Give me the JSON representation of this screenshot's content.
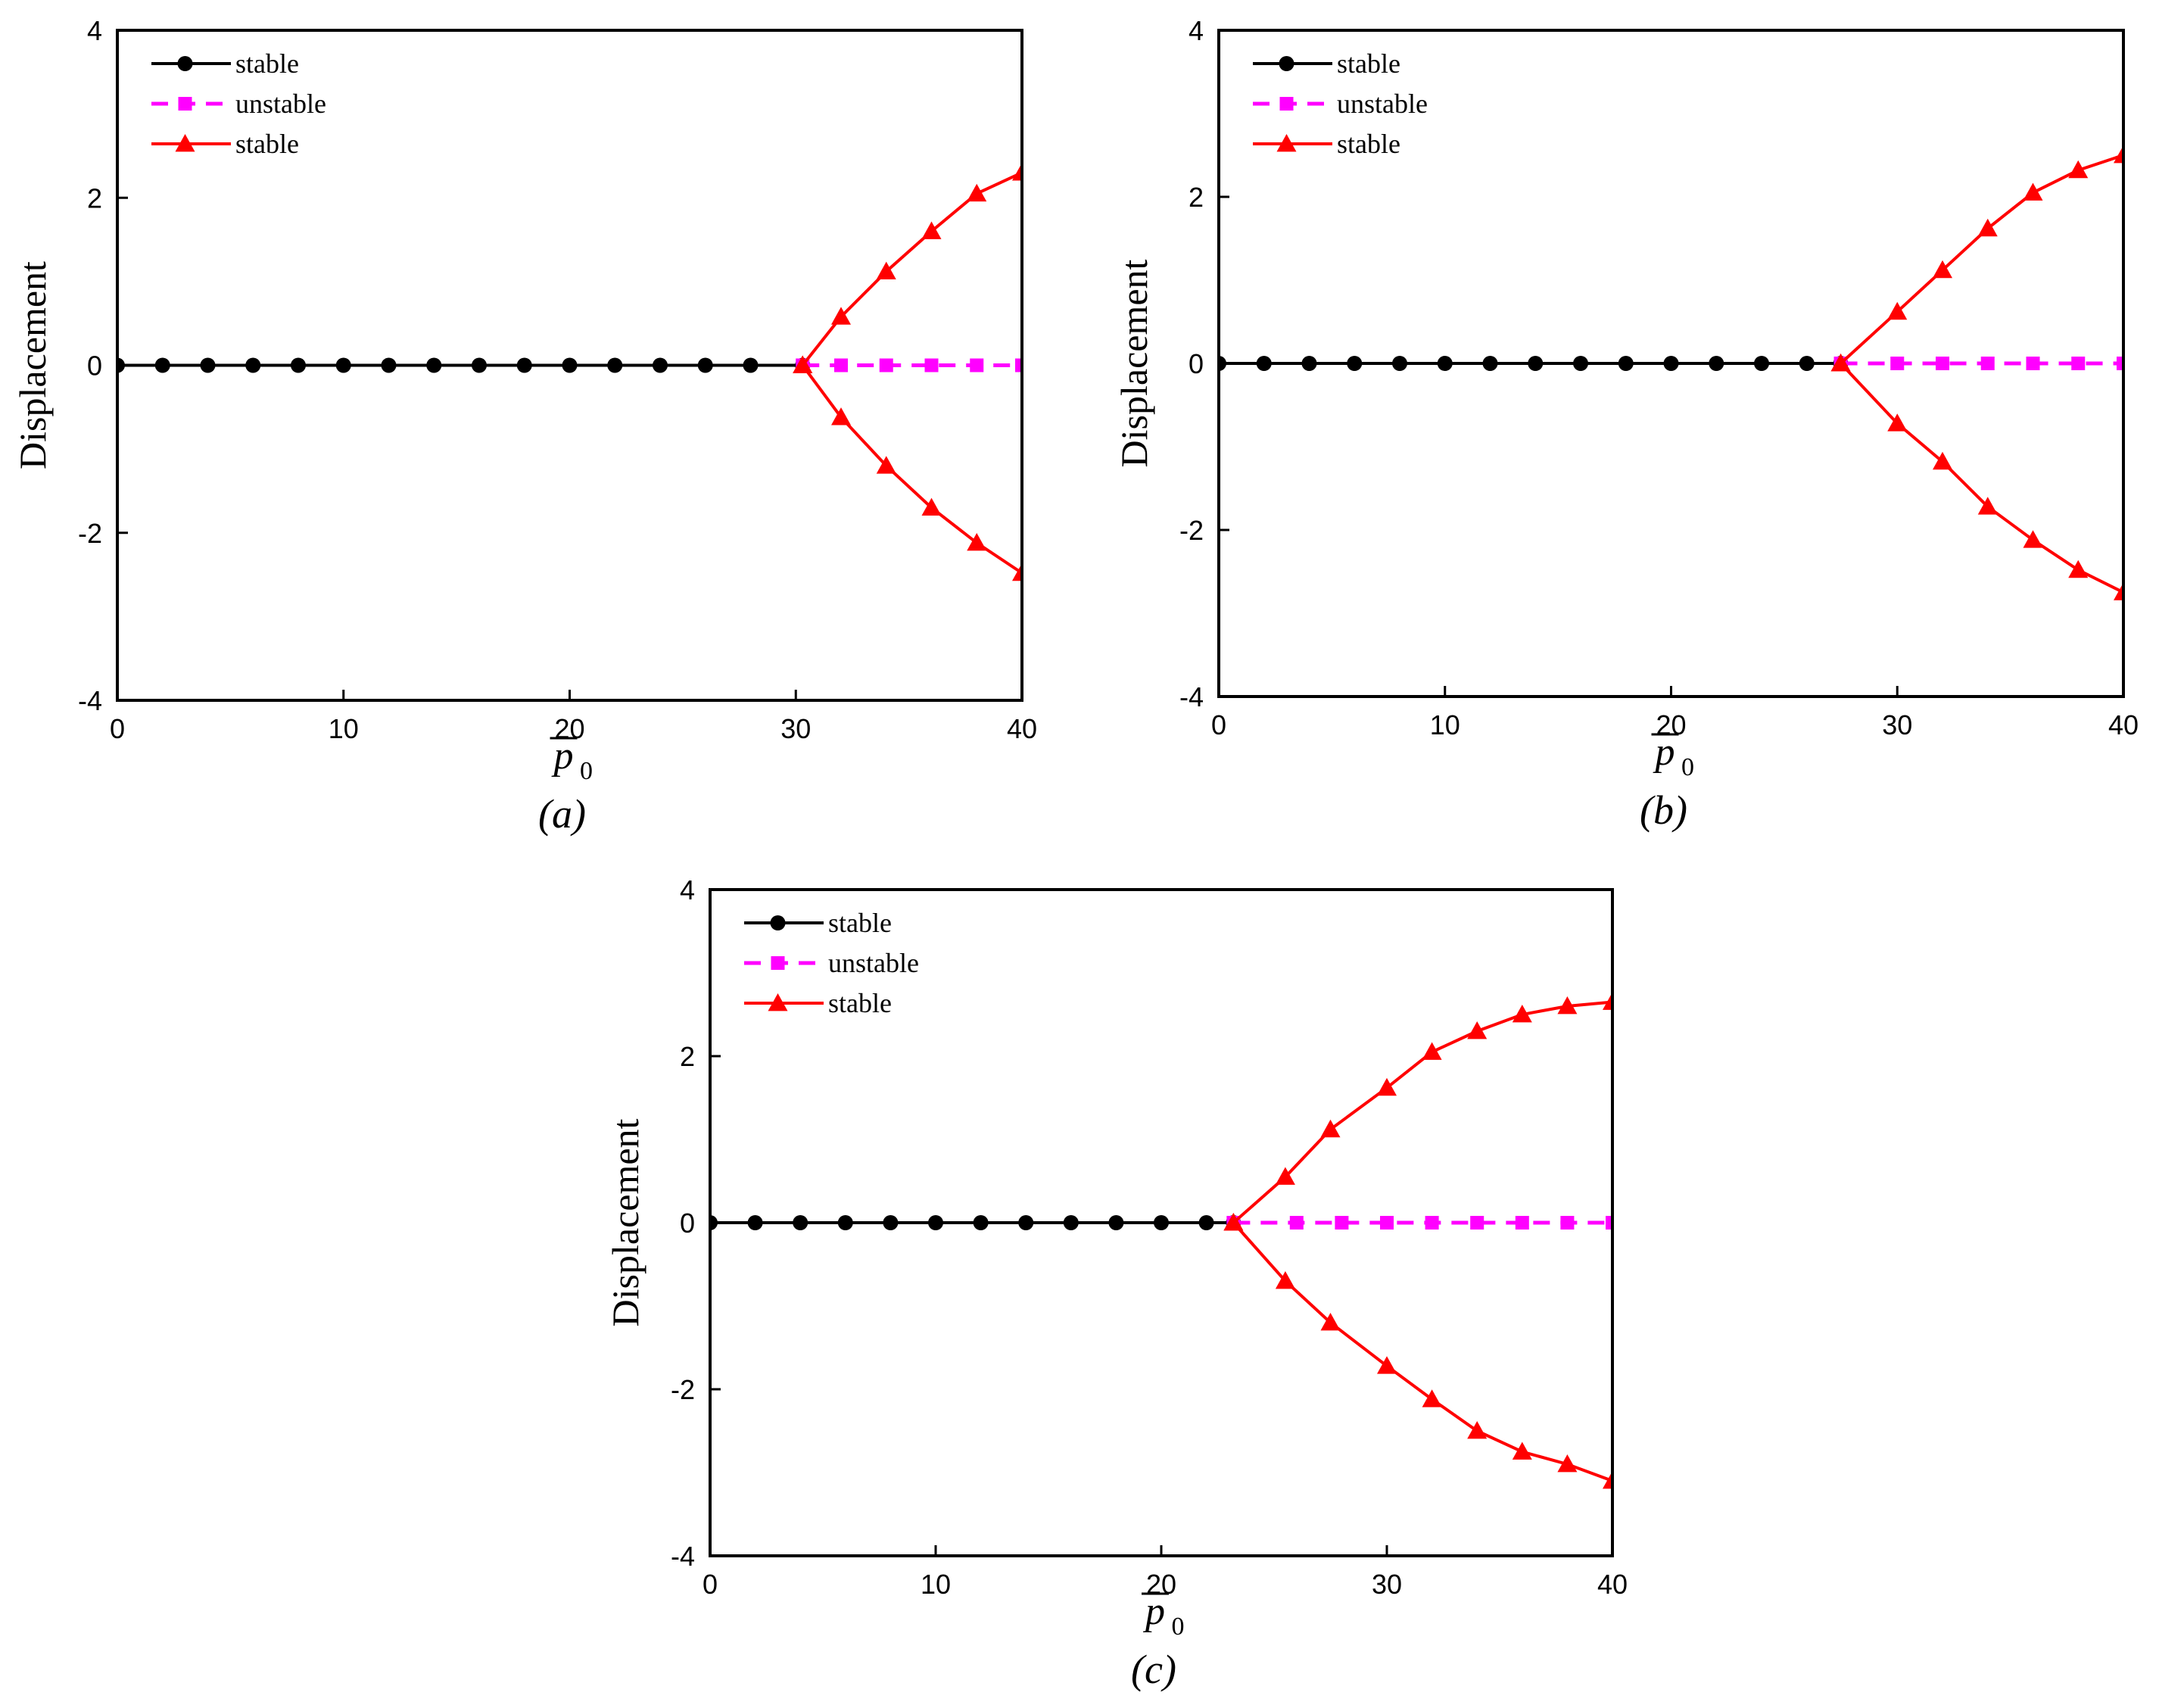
{
  "chart_data": [
    {
      "type": "line",
      "panel_label": "(a)",
      "xlabel": "p",
      "xlabel_subscript": "0",
      "ylabel": "Displacement",
      "xlim": [
        0,
        40
      ],
      "ylim": [
        -4,
        4
      ],
      "xticks": [
        "0",
        "10",
        "20",
        "30",
        "40"
      ],
      "yticks": [
        "-4",
        "-2",
        "0",
        "2",
        "4"
      ],
      "legend_position": "top-left",
      "series": [
        {
          "name": "stable",
          "style": "solid",
          "marker": "circle",
          "color": "#000000",
          "x": [
            0,
            2,
            4,
            6,
            8,
            10,
            12,
            14,
            16,
            18,
            20,
            22,
            24,
            26,
            28,
            30.3
          ],
          "y": [
            0,
            0,
            0,
            0,
            0,
            0,
            0,
            0,
            0,
            0,
            0,
            0,
            0,
            0,
            0,
            0
          ]
        },
        {
          "name": "unstable",
          "style": "dashed",
          "marker": "square",
          "color": "#ff00ff",
          "x": [
            30.3,
            32,
            34,
            36,
            38,
            40
          ],
          "y": [
            0,
            0,
            0,
            0,
            0,
            0
          ]
        },
        {
          "name": "stable",
          "style": "solid",
          "marker": "triangle",
          "color": "#ff0000",
          "x": [
            30.3,
            32,
            34,
            36,
            38,
            40
          ],
          "y": [
            0,
            0.58,
            1.12,
            1.6,
            2.05,
            2.3
          ]
        },
        {
          "name": "stable",
          "style": "solid",
          "marker": "triangle",
          "color": "#ff0000",
          "in_legend": false,
          "x": [
            30.3,
            32,
            34,
            36,
            38,
            40
          ],
          "y": [
            0,
            -0.62,
            -1.2,
            -1.7,
            -2.12,
            -2.48
          ]
        }
      ]
    },
    {
      "type": "line",
      "panel_label": "(b)",
      "xlabel": "p",
      "xlabel_subscript": "0",
      "ylabel": "Displacement",
      "xlim": [
        0,
        40
      ],
      "ylim": [
        -4,
        4
      ],
      "xticks": [
        "0",
        "10",
        "20",
        "30",
        "40"
      ],
      "yticks": [
        "-4",
        "-2",
        "0",
        "2",
        "4"
      ],
      "legend_position": "top-left",
      "series": [
        {
          "name": "stable",
          "style": "solid",
          "marker": "circle",
          "color": "#000000",
          "x": [
            0,
            2,
            4,
            6,
            8,
            10,
            12,
            14,
            16,
            18,
            20,
            22,
            24,
            26,
            27.5
          ],
          "y": [
            0,
            0,
            0,
            0,
            0,
            0,
            0,
            0,
            0,
            0,
            0,
            0,
            0,
            0,
            0
          ]
        },
        {
          "name": "unstable",
          "style": "dashed",
          "marker": "square",
          "color": "#ff00ff",
          "x": [
            27.5,
            30,
            32,
            34,
            36,
            38,
            40
          ],
          "y": [
            0,
            0,
            0,
            0,
            0,
            0,
            0
          ]
        },
        {
          "name": "stable",
          "style": "solid",
          "marker": "triangle",
          "color": "#ff0000",
          "x": [
            27.5,
            30,
            32,
            34,
            36,
            38,
            40
          ],
          "y": [
            0,
            0.62,
            1.12,
            1.62,
            2.05,
            2.32,
            2.5
          ]
        },
        {
          "name": "stable",
          "style": "solid",
          "marker": "triangle",
          "color": "#ff0000",
          "in_legend": false,
          "x": [
            27.5,
            30,
            32,
            34,
            36,
            38,
            40
          ],
          "y": [
            0,
            -0.72,
            -1.18,
            -1.72,
            -2.12,
            -2.48,
            -2.75
          ]
        }
      ]
    },
    {
      "type": "line",
      "panel_label": "(c)",
      "xlabel": "p",
      "xlabel_subscript": "0",
      "ylabel": "Displacement",
      "xlim": [
        0,
        40
      ],
      "ylim": [
        -4,
        4
      ],
      "xticks": [
        "0",
        "10",
        "20",
        "30",
        "40"
      ],
      "yticks": [
        "-4",
        "-2",
        "0",
        "2",
        "4"
      ],
      "legend_position": "top-left",
      "series": [
        {
          "name": "stable",
          "style": "solid",
          "marker": "circle",
          "color": "#000000",
          "x": [
            0,
            2,
            4,
            6,
            8,
            10,
            12,
            14,
            16,
            18,
            20,
            22,
            23.2
          ],
          "y": [
            0,
            0,
            0,
            0,
            0,
            0,
            0,
            0,
            0,
            0,
            0,
            0,
            0
          ]
        },
        {
          "name": "unstable",
          "style": "dashed",
          "marker": "square",
          "color": "#ff00ff",
          "x": [
            23.2,
            26,
            28,
            30,
            32,
            34,
            36,
            38,
            40
          ],
          "y": [
            0,
            0,
            0,
            0,
            0,
            0,
            0,
            0,
            0
          ]
        },
        {
          "name": "stable",
          "style": "solid",
          "marker": "triangle",
          "color": "#ff0000",
          "x": [
            23.2,
            25.5,
            27.5,
            30,
            32,
            34,
            36,
            38,
            40
          ],
          "y": [
            0,
            0.55,
            1.12,
            1.62,
            2.05,
            2.3,
            2.5,
            2.6,
            2.65
          ]
        },
        {
          "name": "stable",
          "style": "solid",
          "marker": "triangle",
          "color": "#ff0000",
          "in_legend": false,
          "x": [
            23.2,
            25.5,
            27.5,
            30,
            32,
            34,
            36,
            38,
            40
          ],
          "y": [
            0,
            -0.7,
            -1.2,
            -1.72,
            -2.12,
            -2.5,
            -2.75,
            -2.9,
            -3.1
          ]
        }
      ]
    }
  ]
}
